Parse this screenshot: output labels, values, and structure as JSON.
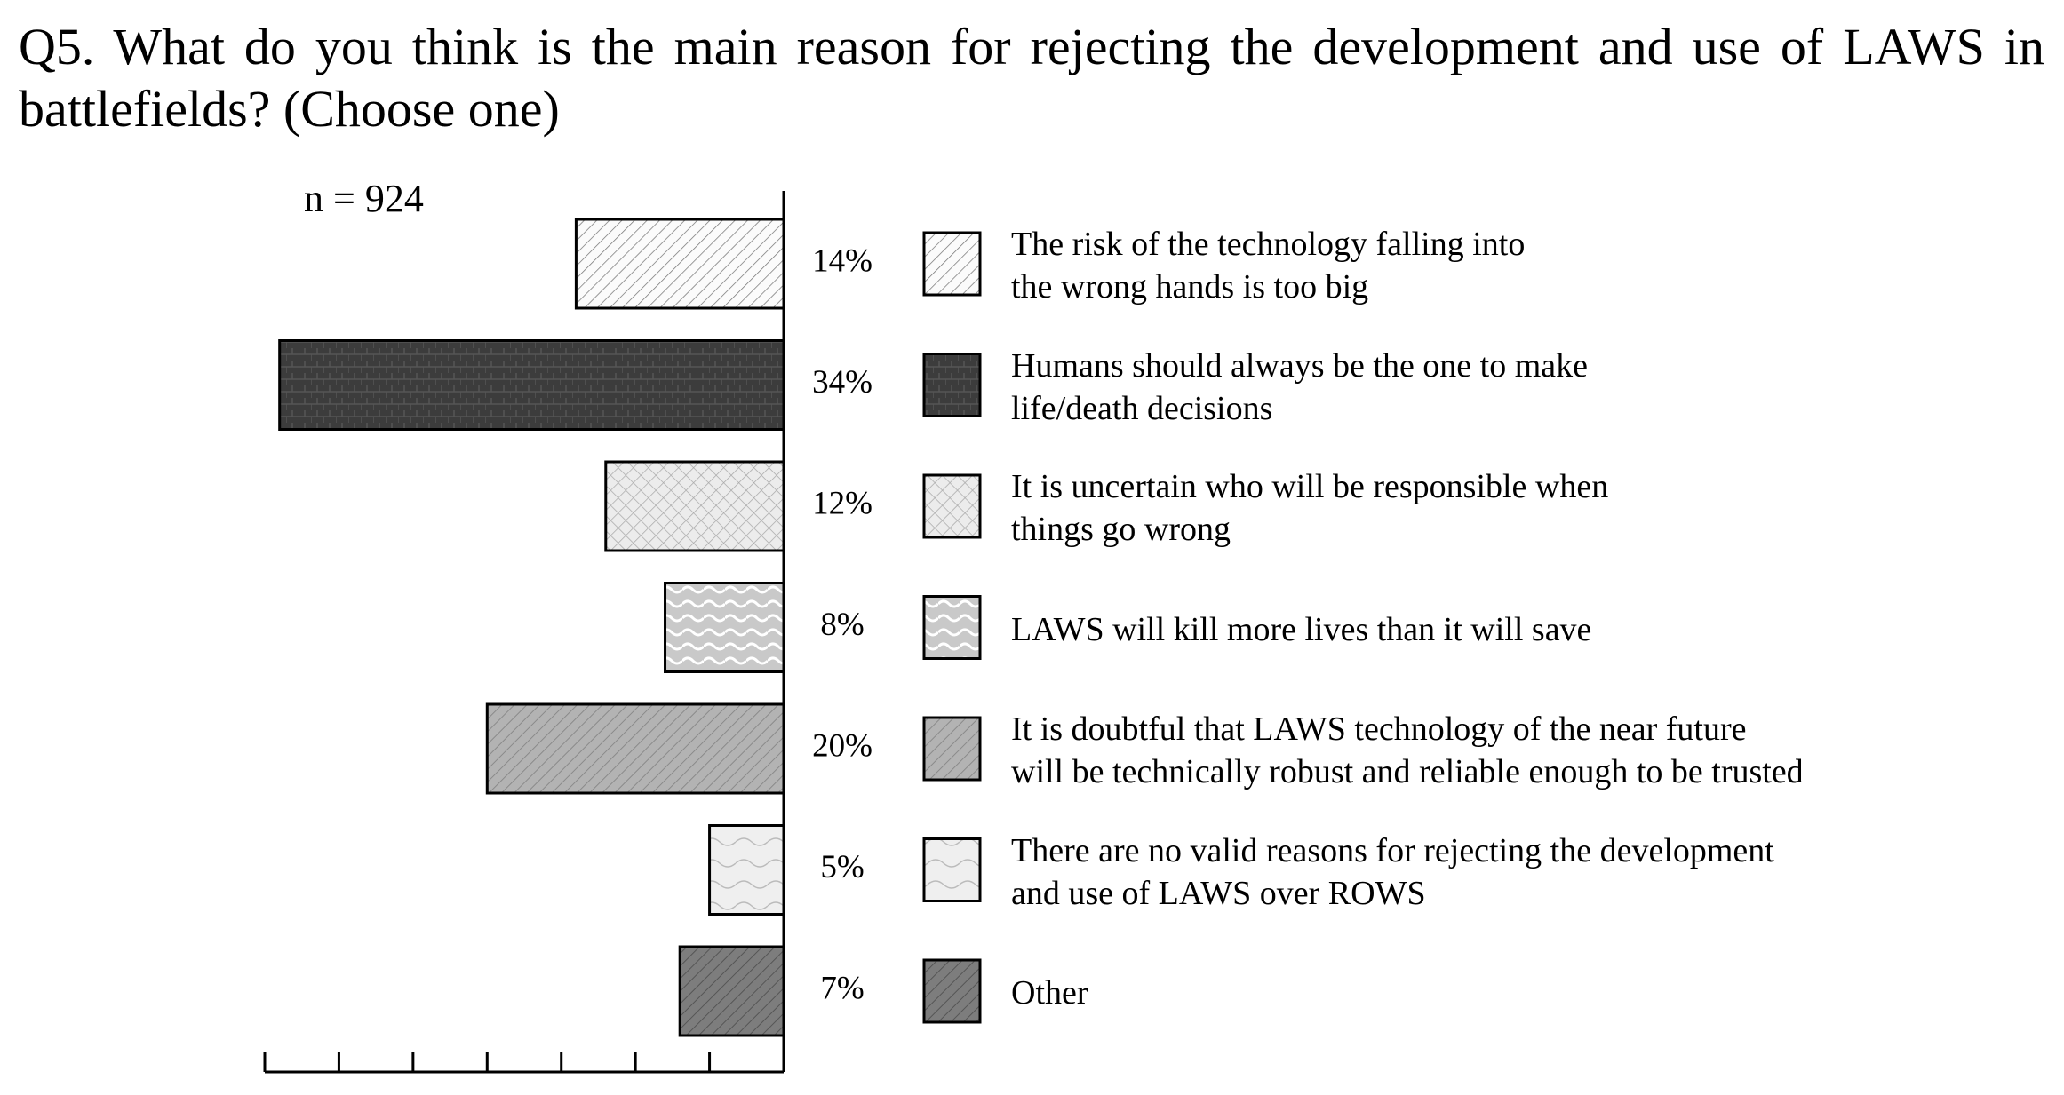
{
  "chart_data": {
    "type": "hbar",
    "title": "Q5. What do you think is the main reason for rejecting the development and use of LAWS in battlefields? (Choose one)",
    "annotation": "n = 924",
    "categories": [
      "The risk of the technology falling into\nthe wrong hands is too big",
      "Humans should always be the one to make\nlife/death decisions",
      "It is uncertain who will be responsible when\nthings go wrong",
      "LAWS will kill more lives than it will save",
      "It is doubtful that LAWS technology of the near future\nwill be technically robust and reliable enough to be trusted",
      "There are no valid reasons for rejecting the development\nand use of LAWS over ROWS",
      "Other"
    ],
    "values": [
      14,
      34,
      12,
      8,
      20,
      5,
      7
    ],
    "value_labels": [
      "14%",
      "34%",
      "12%",
      "8%",
      "20%",
      "5%",
      "7%"
    ],
    "colors": [
      "#fbfbfb",
      "#3c3c3c",
      "#ececec",
      "#c9c9c9",
      "#b3b3b3",
      "#efefef",
      "#7d7d7d"
    ],
    "xlim": [
      0,
      35
    ],
    "xticks": [
      0,
      5,
      10,
      15,
      20,
      25,
      30,
      35
    ],
    "direction": "left"
  }
}
